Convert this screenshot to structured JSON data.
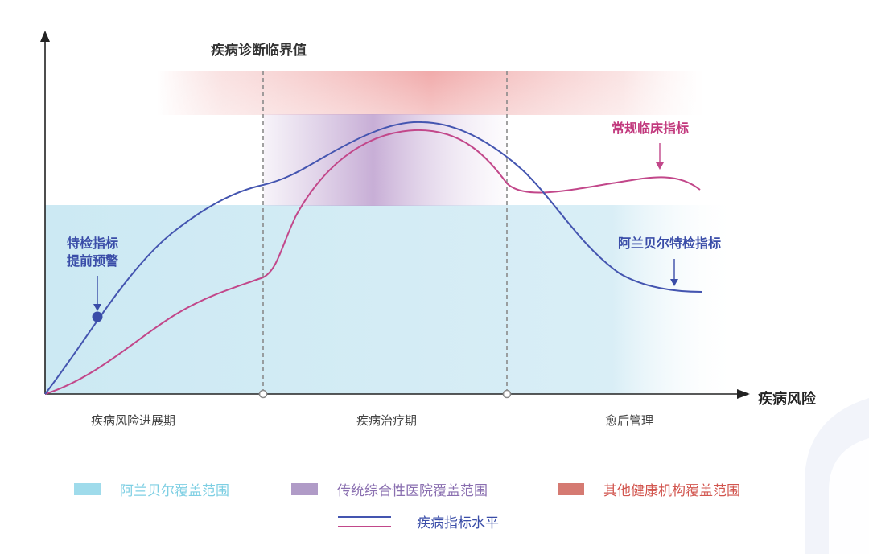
{
  "labels": {
    "critical_value": "疾病诊断临界值",
    "x_axis": "疾病风险",
    "conventional": "常规临床指标",
    "alan_special": "阿兰贝尔特检指标",
    "warning_line1": "特检指标",
    "warning_line2": "提前预警"
  },
  "phases": [
    "疾病风险进展期",
    "疾病治疗期",
    "愈后管理"
  ],
  "legend": {
    "alan_coverage": "阿兰贝尔覆盖范围",
    "traditional_coverage": "传统综合性医院覆盖范围",
    "other_coverage": "其他健康机构覆盖范围",
    "indicator_level": "疾病指标水平"
  },
  "colors": {
    "blue_line": "#4455B0",
    "pink_line": "#C2478A",
    "alan_coverage": "#9FDBEB",
    "traditional_coverage": "#B09BC7",
    "other_coverage": "#D57A72",
    "alan_text": "#7ECFE3",
    "traditional_text": "#8A6FB0",
    "other_text": "#D2564F"
  }
}
